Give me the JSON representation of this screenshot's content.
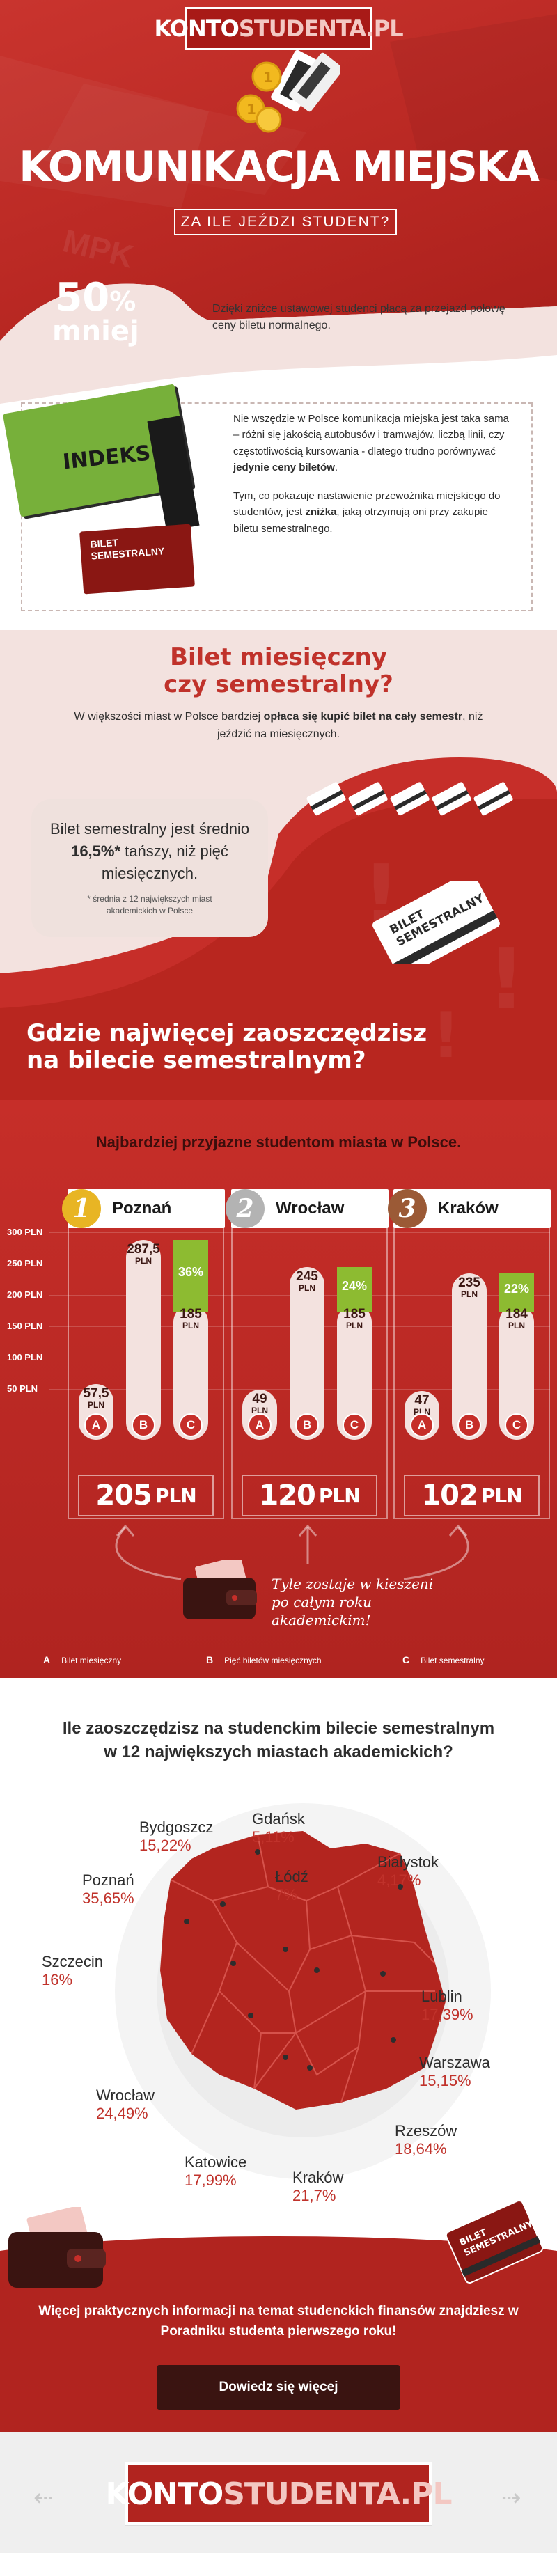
{
  "brand": {
    "bold": "KONTO",
    "light": "STUDENTA.PL"
  },
  "hero": {
    "title": "KOMUNIKACJA MIEJSKA",
    "subtitle": "ZA ILE JEŹDZI STUDENT?",
    "watermark": "MPK",
    "discount_big": "50",
    "discount_pct": "%",
    "discount_word": "mniej",
    "discount_desc": "Dzięki zniżce ustawowej studenci płacą za przejazd połowę ceny biletu normalnego."
  },
  "intro": {
    "indeks_label": "INDEKS",
    "card_label_1": "BILET",
    "card_label_2": "SEMESTRALNY",
    "p1_before": "Nie wszędzie w Polsce komunikacja miejska jest taka sama – różni się jakością autobusów i tramwajów, liczbą linii, czy częstotliwością kursowania - dlatego trudno porównywać ",
    "p1_bold": "jedynie ceny biletów",
    "p1_after": ".",
    "p2_before": "Tym, co pokazuje nastawienie przewoźnika miejskiego do studentów, jest ",
    "p2_bold": "zniżka",
    "p2_after": ", jaką otrzymują oni przy zakupie biletu semestralnego."
  },
  "monthly": {
    "title_line1": "Bilet miesięczny",
    "title_line2": "czy semestralny?",
    "sub_before": "W większości miast w Polsce bardziej ",
    "sub_bold": "opłaca się kupić bilet na cały semestr",
    "sub_after": ", niż jeździć na miesięcznych.",
    "cheaper_before": "Bilet semestralny jest średnio ",
    "cheaper_bold": "16,5%*",
    "cheaper_after": " tańszy, niż pięć miesięcznych.",
    "note": "* średnia z 12 największych miast akademickich w Polsce",
    "big_ticket_1": "BILET",
    "big_ticket_2": "SEMESTRALNY"
  },
  "savings_question": {
    "line1": "Gdzie najwięcej zaoszczędzisz",
    "line2": "na bilecie semestralnym?"
  },
  "chart_data": {
    "type": "bar",
    "title": "Najbardziej przyjazne studentom miasta w Polsce.",
    "ylim": [
      0,
      300
    ],
    "y_ticks": [
      "300 PLN",
      "250 PLN",
      "200 PLN",
      "150 PLN",
      "100 PLN",
      "50 PLN"
    ],
    "categories": [
      "A",
      "B",
      "C"
    ],
    "currency": "PLN",
    "cities": [
      {
        "rank": "1",
        "name": "Poznań",
        "rank_color": "#e8b524",
        "A": 57.5,
        "A_label": "57,5",
        "B": 287.5,
        "B_label": "287,5",
        "C": 185,
        "C_label": "185",
        "discount": "36%",
        "discount_value": 36,
        "saving": "205",
        "saving_unit": "PLN"
      },
      {
        "rank": "2",
        "name": "Wrocław",
        "rank_color": "#b3b3b3",
        "A": 49,
        "A_label": "49",
        "B": 245,
        "B_label": "245",
        "C": 185,
        "C_label": "185",
        "discount": "24%",
        "discount_value": 24,
        "saving": "120",
        "saving_unit": "PLN"
      },
      {
        "rank": "3",
        "name": "Kraków",
        "rank_color": "#9b5a36",
        "A": 47,
        "A_label": "47",
        "B": 235,
        "B_label": "235",
        "C": 184,
        "C_label": "184",
        "discount": "22%",
        "discount_value": 22,
        "saving": "102",
        "saving_unit": "PLN"
      }
    ],
    "annotation": "Tyle zostaje w kieszeni po całym roku akademickim!",
    "legend": [
      {
        "key": "A",
        "label": "Bilet miesięczny"
      },
      {
        "key": "B",
        "label": "Pięć biletów miesięcznych"
      },
      {
        "key": "C",
        "label": "Bilet semestralny"
      }
    ]
  },
  "map": {
    "title_line1": "Ile zaoszczędzisz na studenckim bilecie semestralnym",
    "title_line2": "w 12 największych miastach akademickich?",
    "cities": [
      {
        "name": "Gdańsk",
        "value": "5,11%"
      },
      {
        "name": "Bydgoszcz",
        "value": "15,22%"
      },
      {
        "name": "Białystok",
        "value": "4,17%"
      },
      {
        "name": "Poznań",
        "value": "35,65%"
      },
      {
        "name": "Łódź",
        "value": "7%"
      },
      {
        "name": "Szczecin",
        "value": "16%"
      },
      {
        "name": "Lublin",
        "value": "17,39%"
      },
      {
        "name": "Warszawa",
        "value": "15,15%"
      },
      {
        "name": "Wrocław",
        "value": "24,49%"
      },
      {
        "name": "Rzeszów",
        "value": "18,64%"
      },
      {
        "name": "Katowice",
        "value": "17,99%"
      },
      {
        "name": "Kraków",
        "value": "21,7%"
      }
    ]
  },
  "footer": {
    "ticket_1": "BILET",
    "ticket_2": "SEMESTRALNY",
    "text": "Więcej praktycznych informacji na temat studenckich finansów znajdziesz w Poradniku studenta pierwszego roku!",
    "button": "Dowiedz się więcej",
    "arrow_left": "⇠",
    "arrow_right": "⇢"
  },
  "colors": {
    "brand_red": "#c62e29",
    "dark_red": "#3a1411",
    "green": "#8dbb31",
    "pink": "#f3e2df"
  },
  "icons": [
    "coins-icon",
    "ticket-icon",
    "wallet-icon",
    "arrow-icon"
  ]
}
